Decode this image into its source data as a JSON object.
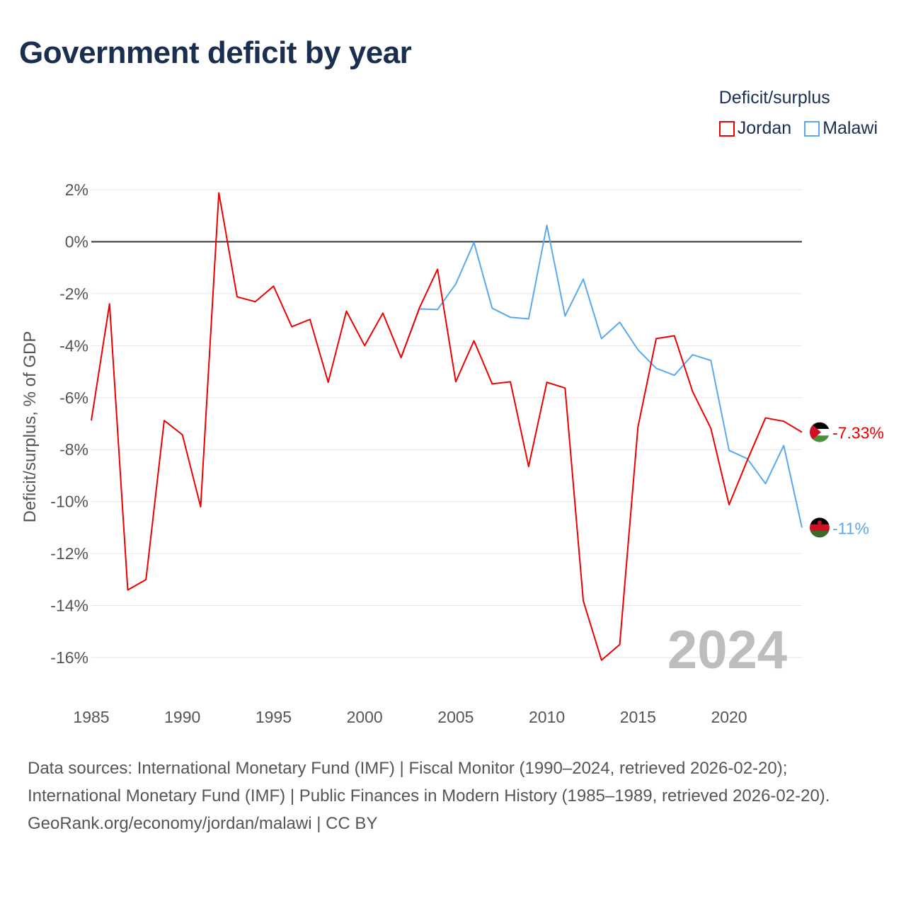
{
  "title": "Government deficit by year",
  "legend": {
    "title": "Deficit/surplus",
    "items": [
      {
        "label": "Jordan",
        "color": "#ee0000"
      },
      {
        "label": "Malawi",
        "color": "#5aa9ee"
      }
    ]
  },
  "footer": {
    "sources": "Data sources: International Monetary Fund (IMF) | Fiscal Monitor (1990–2024, retrieved 2026-02-20); International Monetary Fund (IMF) | Public Finances in Modern History (1985–1989, retrieved 2026-02-20).",
    "credit": "GeoRank.org/economy/jordan/malawi | CC BY"
  },
  "chart_data": {
    "type": "line",
    "title": "Government deficit by year",
    "ylabel": "Deficit/surplus, % of GDP",
    "xlabel": "",
    "xlim": [
      1985,
      2024
    ],
    "ylim": [
      -16,
      2
    ],
    "x_ticks": [
      1985,
      1990,
      1995,
      2000,
      2005,
      2010,
      2015,
      2020
    ],
    "y_ticks": [
      2,
      0,
      -2,
      -4,
      -6,
      -8,
      -10,
      -12,
      -14,
      -16
    ],
    "y_tick_labels": [
      "2%",
      "0%",
      "-2%",
      "-4%",
      "-6%",
      "-8%",
      "-10%",
      "-12%",
      "-14%",
      "-16%"
    ],
    "grid": true,
    "legend_position": "top-right",
    "year_watermark": "2024",
    "series": [
      {
        "name": "Jordan",
        "color": "#ee0000",
        "end_label": "-7.33%",
        "x": [
          1985,
          1986,
          1987,
          1988,
          1989,
          1990,
          1991,
          1992,
          1993,
          1994,
          1995,
          1996,
          1997,
          1998,
          1999,
          2000,
          2001,
          2002,
          2003,
          2004,
          2005,
          2006,
          2007,
          2008,
          2009,
          2010,
          2011,
          2012,
          2013,
          2014,
          2015,
          2016,
          2017,
          2018,
          2019,
          2020,
          2021,
          2022,
          2023,
          2024
        ],
        "values": [
          -6.88,
          -2.39,
          -13.4,
          -13.0,
          -6.88,
          -7.43,
          -10.2,
          1.88,
          -2.12,
          -2.31,
          -1.71,
          -3.27,
          -2.99,
          -5.41,
          -2.67,
          -4.0,
          -2.75,
          -4.46,
          -2.56,
          -1.06,
          -5.39,
          -3.81,
          -5.47,
          -5.39,
          -8.65,
          -5.41,
          -5.63,
          -13.82,
          -16.1,
          -15.5,
          -7.13,
          -3.73,
          -3.62,
          -5.77,
          -7.18,
          -10.12,
          -8.41,
          -6.78,
          -6.91,
          -7.33
        ]
      },
      {
        "name": "Malawi",
        "color": "#5aa9ee",
        "end_label": "-11%",
        "x": [
          2002,
          2003,
          2004,
          2005,
          2006,
          2007,
          2008,
          2009,
          2010,
          2011,
          2012,
          2013,
          2014,
          2015,
          2016,
          2017,
          2018,
          2019,
          2020,
          2021,
          2022,
          2023,
          2024
        ],
        "values": [
          -4.46,
          -2.59,
          -2.61,
          -1.63,
          -0.03,
          -2.56,
          -2.91,
          -2.97,
          0.63,
          -2.86,
          -1.44,
          -3.73,
          -3.1,
          -4.16,
          -4.87,
          -5.14,
          -4.35,
          -4.57,
          -8.03,
          -8.35,
          -9.31,
          -7.84,
          -11.0
        ]
      }
    ]
  }
}
